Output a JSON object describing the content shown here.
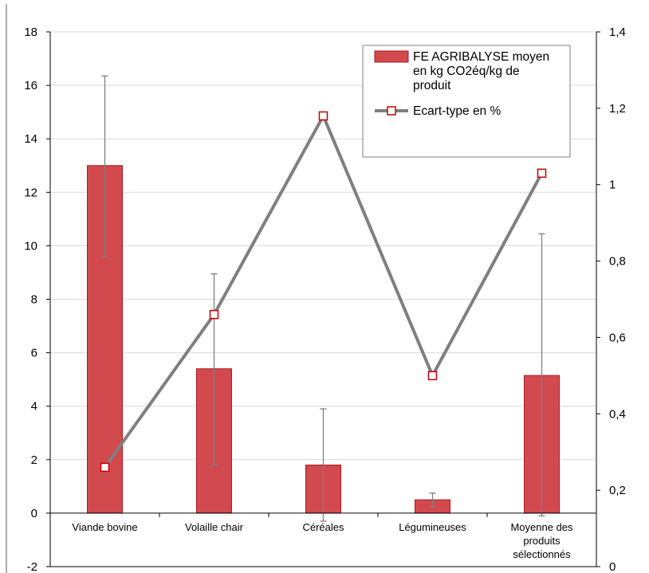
{
  "chart_data": {
    "type": "bar",
    "categories": [
      [
        "Viande bovine"
      ],
      [
        "Volaille chair"
      ],
      [
        "Céréales"
      ],
      [
        "Légumineuses"
      ],
      [
        "Moyenne des",
        "produits",
        "sélectionnés"
      ]
    ],
    "series": [
      {
        "name": "FE AGRIBALYSE moyen en kg CO2éq/kg de produit",
        "legend_lines": [
          "FE AGRIBALYSE moyen",
          "en kg CO2éq/kg de",
          "produit"
        ],
        "type": "bar",
        "axis": "left",
        "values": [
          13.0,
          5.4,
          1.8,
          0.5,
          5.15
        ],
        "error_low": [
          9.6,
          1.8,
          -0.3,
          0.25,
          -0.1
        ],
        "error_high": [
          16.35,
          8.95,
          3.9,
          0.75,
          10.45
        ],
        "color": "#d24a4e",
        "border": "#a81a20"
      },
      {
        "name": "Ecart-type en %",
        "type": "line",
        "axis": "right",
        "values": [
          0.26,
          0.66,
          1.18,
          0.5,
          1.03
        ],
        "color": "#7f7f7f",
        "marker_color": "#c00000"
      }
    ],
    "ylim": [
      -2,
      18
    ],
    "yticks": [
      "-2",
      "0",
      "2",
      "4",
      "6",
      "8",
      "10",
      "12",
      "14",
      "16",
      "18"
    ],
    "y2lim": [
      0,
      1.4
    ],
    "y2ticks": [
      "0",
      "0,2",
      "0,4",
      "0,6",
      "0,8",
      "1",
      "1,2",
      "1,4"
    ],
    "grid": true,
    "legend_position": "top-right",
    "error_bar_color": "#7f7f7f",
    "grid_color": "#d9d9d9"
  }
}
